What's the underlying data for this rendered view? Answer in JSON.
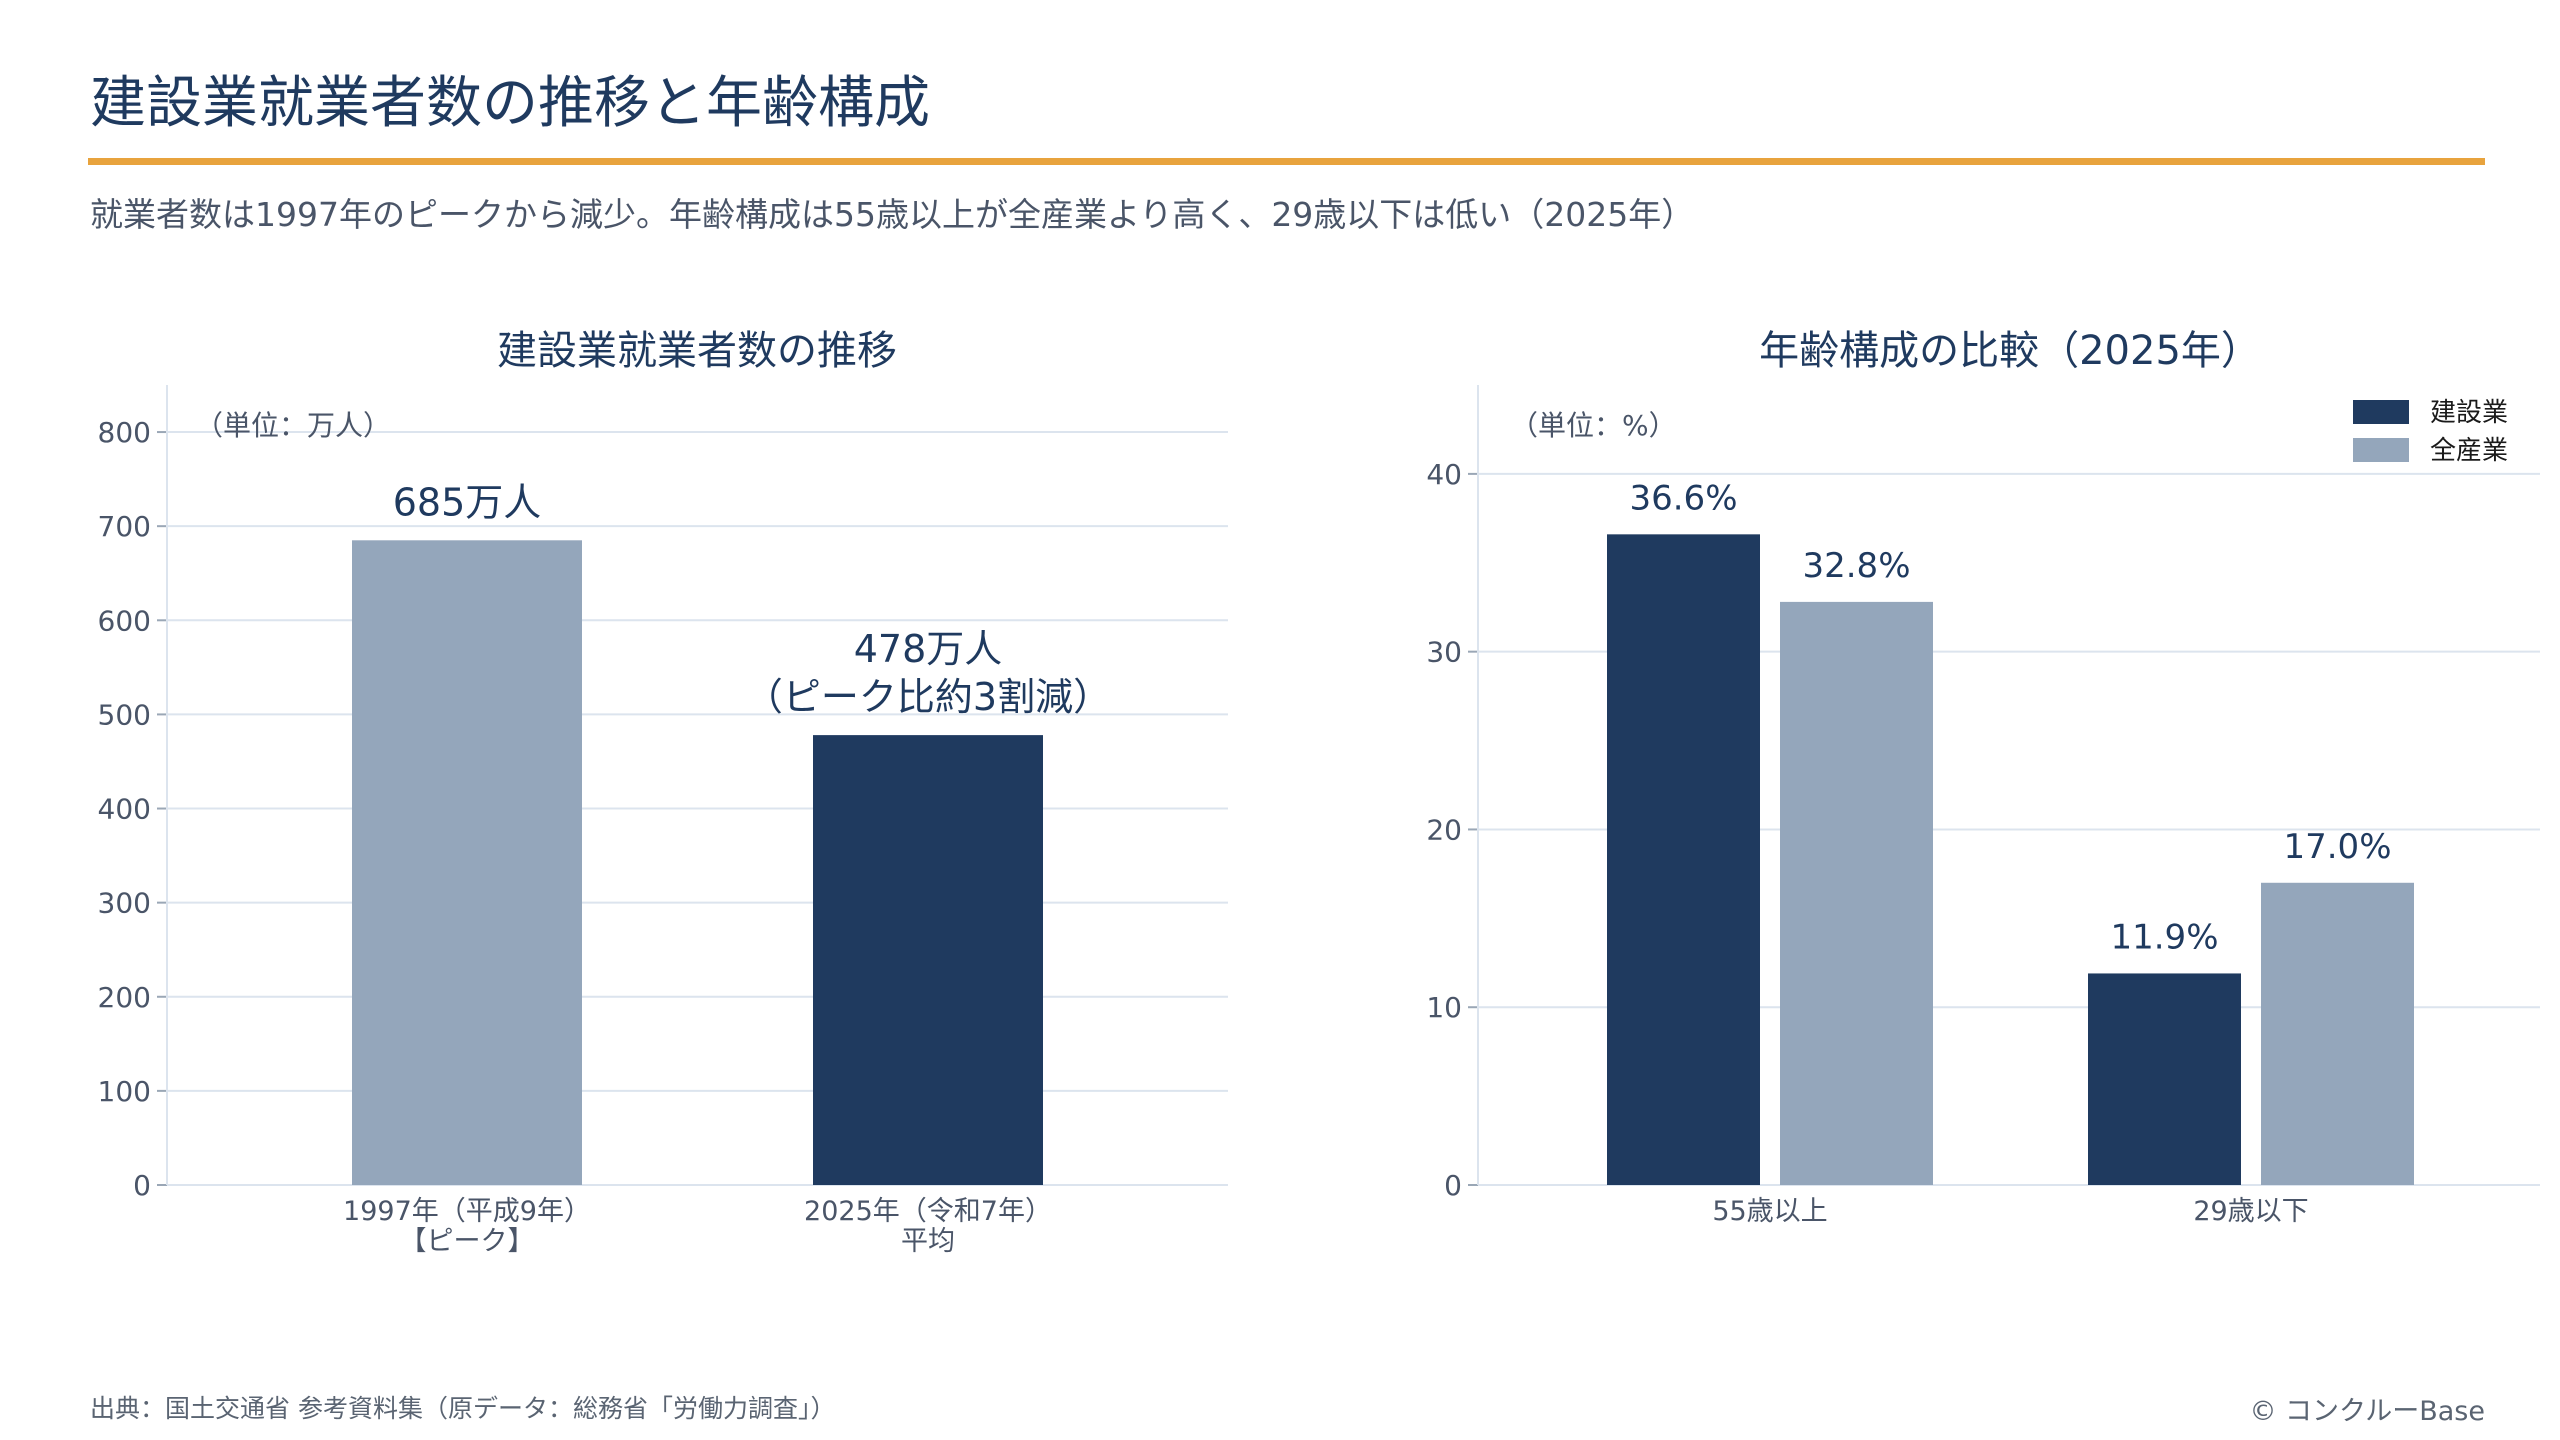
{
  "page": {
    "title": "建設業就業者数の推移と年齢構成",
    "subtitle": "就業者数は1997年のピークから減少。年齢構成は55歳以上が全産業より高く、29歳以下は低い（2025年）",
    "source": "出典：国土交通省 参考資料集（原データ：総務省「労働力調査」）",
    "copyright": "© コンクルーBase"
  },
  "colors": {
    "accent": "#e8a33d",
    "construction": "#1f3a5f",
    "all_industry": "#94a6bb",
    "grid": "#dce4ee",
    "text": "#1f3a5f",
    "muted": "#4a5568"
  },
  "chart_data": [
    {
      "type": "bar",
      "title": "建設業就業者数の推移",
      "unit_label": "（単位：万人）",
      "categories": [
        [
          "1997年（平成9年）",
          "【ピーク】"
        ],
        [
          "2025年（令和7年）",
          "平均"
        ]
      ],
      "values": [
        685,
        478
      ],
      "bar_colors": [
        "#94a6bb",
        "#1f3a5f"
      ],
      "data_labels": [
        [
          "685万人"
        ],
        [
          "478万人",
          "（ピーク比約3割減）"
        ]
      ],
      "ylim": [
        0,
        850
      ],
      "yticks": [
        0,
        100,
        200,
        300,
        400,
        500,
        600,
        700,
        800
      ],
      "grid": true
    },
    {
      "type": "bar",
      "title": "年齢構成の比較（2025年）",
      "unit_label": "（単位：%）",
      "categories": [
        "55歳以上",
        "29歳以下"
      ],
      "series": [
        {
          "name": "建設業",
          "values": [
            36.6,
            11.9
          ],
          "color": "#1f3a5f",
          "labels": [
            "36.6%",
            "11.9%"
          ]
        },
        {
          "name": "全産業",
          "values": [
            32.8,
            17.0
          ],
          "color": "#94a6bb",
          "labels": [
            "32.8%",
            "17.0%"
          ]
        }
      ],
      "ylim": [
        0,
        45
      ],
      "yticks": [
        0,
        10,
        20,
        30,
        40
      ],
      "legend": "top-right",
      "grid": true
    }
  ]
}
